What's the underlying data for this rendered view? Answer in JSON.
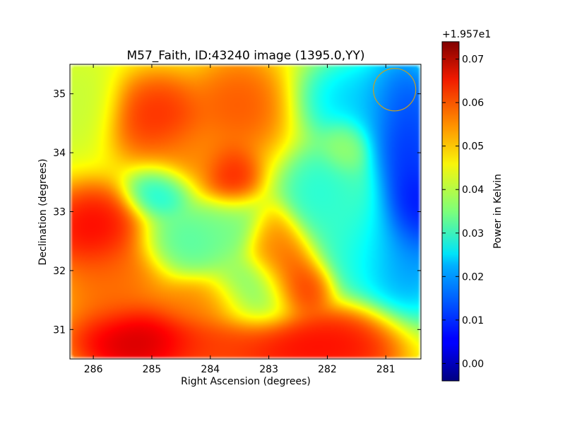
{
  "chart_data": {
    "type": "heatmap",
    "title": "M57_Faith, ID:43240 image (1395.0,YY)",
    "xlabel": "Right Ascension (degrees)",
    "ylabel": "Declination (degrees)",
    "x_ticks": [
      "286",
      "285",
      "284",
      "283",
      "282",
      "281"
    ],
    "x_tick_values": [
      286,
      285,
      284,
      283,
      282,
      281
    ],
    "y_ticks": [
      "31",
      "32",
      "33",
      "34",
      "35"
    ],
    "y_tick_values": [
      31,
      32,
      33,
      34,
      35
    ],
    "xlim": [
      286.4,
      280.4
    ],
    "ylim": [
      30.5,
      35.5
    ],
    "x_axis_inverted": true,
    "colormap": "jet",
    "colorbar": {
      "label": "Power in Kelvin",
      "offset_text": "+1.957e1",
      "ticks": [
        "0.00",
        "0.01",
        "0.02",
        "0.03",
        "0.04",
        "0.05",
        "0.06",
        "0.07"
      ],
      "tick_values": [
        0.0,
        0.01,
        0.02,
        0.03,
        0.04,
        0.05,
        0.06,
        0.07
      ],
      "range": [
        -0.004,
        0.074
      ]
    },
    "grid": false,
    "beam_marker": {
      "shape": "circle",
      "color": "#c8a020",
      "center": {
        "ra": 280.85,
        "dec": 35.07
      }
    },
    "field": {
      "background_value": 0.043,
      "features": [
        {
          "ra": 285.2,
          "dec": 30.8,
          "value": 0.073,
          "sigma_ra": 0.65,
          "sigma_dec": 0.35
        },
        {
          "ra": 283.9,
          "dec": 30.7,
          "value": 0.06,
          "sigma_ra": 0.6,
          "sigma_dec": 0.3
        },
        {
          "ra": 282.6,
          "dec": 30.7,
          "value": 0.067,
          "sigma_ra": 0.75,
          "sigma_dec": 0.3
        },
        {
          "ra": 281.6,
          "dec": 30.8,
          "value": 0.065,
          "sigma_ra": 0.5,
          "sigma_dec": 0.35
        },
        {
          "ra": 284.2,
          "dec": 31.4,
          "value": 0.055,
          "sigma_ra": 0.45,
          "sigma_dec": 0.25
        },
        {
          "ra": 286.0,
          "dec": 32.7,
          "value": 0.068,
          "sigma_ra": 0.45,
          "sigma_dec": 0.4
        },
        {
          "ra": 285.7,
          "dec": 31.8,
          "value": 0.058,
          "sigma_ra": 0.5,
          "sigma_dec": 0.45
        },
        {
          "ra": 284.9,
          "dec": 34.6,
          "value": 0.064,
          "sigma_ra": 0.45,
          "sigma_dec": 0.4
        },
        {
          "ra": 283.5,
          "dec": 34.8,
          "value": 0.06,
          "sigma_ra": 0.45,
          "sigma_dec": 0.45
        },
        {
          "ra": 283.65,
          "dec": 33.6,
          "value": 0.066,
          "sigma_ra": 0.25,
          "sigma_dec": 0.3
        },
        {
          "ra": 284.3,
          "dec": 33.9,
          "value": 0.055,
          "sigma_ra": 0.5,
          "sigma_dec": 0.35
        },
        {
          "ra": 282.6,
          "dec": 32.0,
          "value": 0.062,
          "sigma_ra": 0.3,
          "sigma_dec": 0.4
        },
        {
          "ra": 282.35,
          "dec": 31.7,
          "value": 0.064,
          "sigma_ra": 0.25,
          "sigma_dec": 0.25
        },
        {
          "ra": 282.9,
          "dec": 32.5,
          "value": 0.055,
          "sigma_ra": 0.25,
          "sigma_dec": 0.3
        },
        {
          "ra": 284.85,
          "dec": 33.35,
          "value": 0.022,
          "sigma_ra": 0.3,
          "sigma_dec": 0.25
        },
        {
          "ra": 284.4,
          "dec": 32.5,
          "value": 0.03,
          "sigma_ra": 0.4,
          "sigma_dec": 0.3
        },
        {
          "ra": 283.7,
          "dec": 32.8,
          "value": 0.033,
          "sigma_ra": 0.35,
          "sigma_dec": 0.3
        },
        {
          "ra": 283.2,
          "dec": 31.6,
          "value": 0.033,
          "sigma_ra": 0.4,
          "sigma_dec": 0.35
        },
        {
          "ra": 282.1,
          "dec": 33.3,
          "value": 0.025,
          "sigma_ra": 0.35,
          "sigma_dec": 0.4
        },
        {
          "ra": 281.8,
          "dec": 33.0,
          "value": 0.03,
          "sigma_ra": 0.4,
          "sigma_dec": 0.5
        },
        {
          "ra": 281.4,
          "dec": 32.4,
          "value": 0.025,
          "sigma_ra": 0.5,
          "sigma_dec": 0.5
        },
        {
          "ra": 281.4,
          "dec": 34.9,
          "value": 0.018,
          "sigma_ra": 0.55,
          "sigma_dec": 0.4
        },
        {
          "ra": 280.7,
          "dec": 34.8,
          "value": 0.006,
          "sigma_ra": 0.35,
          "sigma_dec": 0.5
        },
        {
          "ra": 280.6,
          "dec": 33.8,
          "value": 0.004,
          "sigma_ra": 0.35,
          "sigma_dec": 0.6
        },
        {
          "ra": 280.5,
          "dec": 33.0,
          "value": 0.0,
          "sigma_ra": 0.3,
          "sigma_dec": 0.4
        },
        {
          "ra": 280.7,
          "dec": 32.2,
          "value": 0.012,
          "sigma_ra": 0.45,
          "sigma_dec": 0.6
        },
        {
          "ra": 281.7,
          "dec": 34.1,
          "value": 0.038,
          "sigma_ra": 0.2,
          "sigma_dec": 0.25
        },
        {
          "ra": 286.2,
          "dec": 34.8,
          "value": 0.04,
          "sigma_ra": 0.35,
          "sigma_dec": 0.4
        }
      ]
    }
  }
}
